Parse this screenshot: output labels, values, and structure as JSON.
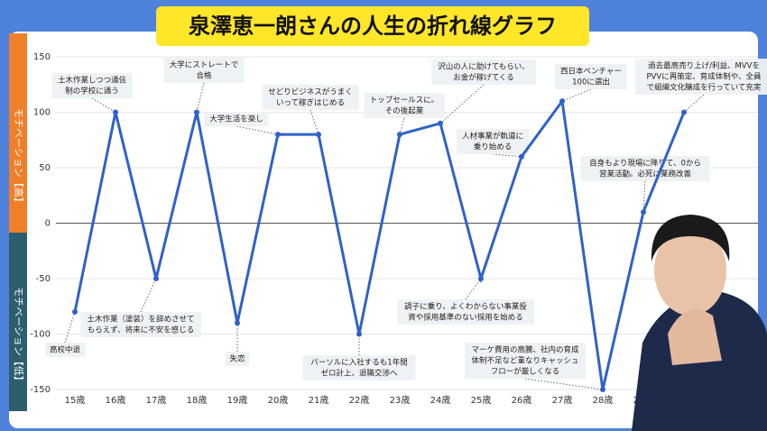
{
  "chart_data": {
    "type": "line",
    "title": "泉澤恵一朗さんの人生の折れ線グラフ",
    "y_label_high": "モチベーション【高】",
    "y_label_low": "モチベーション【低】",
    "categories": [
      "15歳",
      "16歳",
      "17歳",
      "18歳",
      "19歳",
      "20歳",
      "21歳",
      "22歳",
      "23歳",
      "24歳",
      "25歳",
      "26歳",
      "27歳",
      "28歳",
      "29歳",
      null
    ],
    "color": "#2f62c8",
    "values": [
      -80,
      100,
      -50,
      100,
      -90,
      80,
      80,
      -100,
      80,
      90,
      -50,
      60,
      110,
      -150,
      10,
      100
    ],
    "ylim": [
      -150,
      150
    ],
    "yticks": [
      -150,
      -100,
      -50,
      0,
      50,
      100,
      150
    ],
    "annotations": [
      [
        "高校中退"
      ],
      [
        "土木作業しつつ通信",
        "制の学校に通う"
      ],
      [
        "土木作業（塗装）を辞めさせて",
        "もらえず、将来に不安を感じる"
      ],
      [
        "大学にストレートで",
        "合格"
      ],
      [
        "失恋"
      ],
      [
        "大学生活を楽し"
      ],
      [
        "せどりビジネスがうまく",
        "いって稼ぎはじめる"
      ],
      [
        "パーソルに入社するも1年間",
        "ゼロ計上、退職交渉へ"
      ],
      [
        "トップセールスに。",
        "その後起業"
      ],
      [
        "沢山の人に助けてもらい、",
        "お金が稼げてくる"
      ],
      [
        "調子に乗り、よくわからない事業投",
        "資や採用基準のない採用を始める"
      ],
      [
        "人材事業が軌道に",
        "乗り始める"
      ],
      [
        "西日本ベンチャー",
        "100に選出"
      ],
      [
        "マーケ費用の高騰、社内の育成",
        "体制不足など重なりキャッシュ",
        "フローが厳しくなる"
      ],
      [
        "自身もより現場に降りて、0から",
        "営業活動。必死に業務改善"
      ],
      [
        "過去最高売り上げ/利益、MVVを",
        "PVVに再策定、育成体制や、全員",
        "で組織文化醸成を行っていて充実"
      ]
    ]
  }
}
